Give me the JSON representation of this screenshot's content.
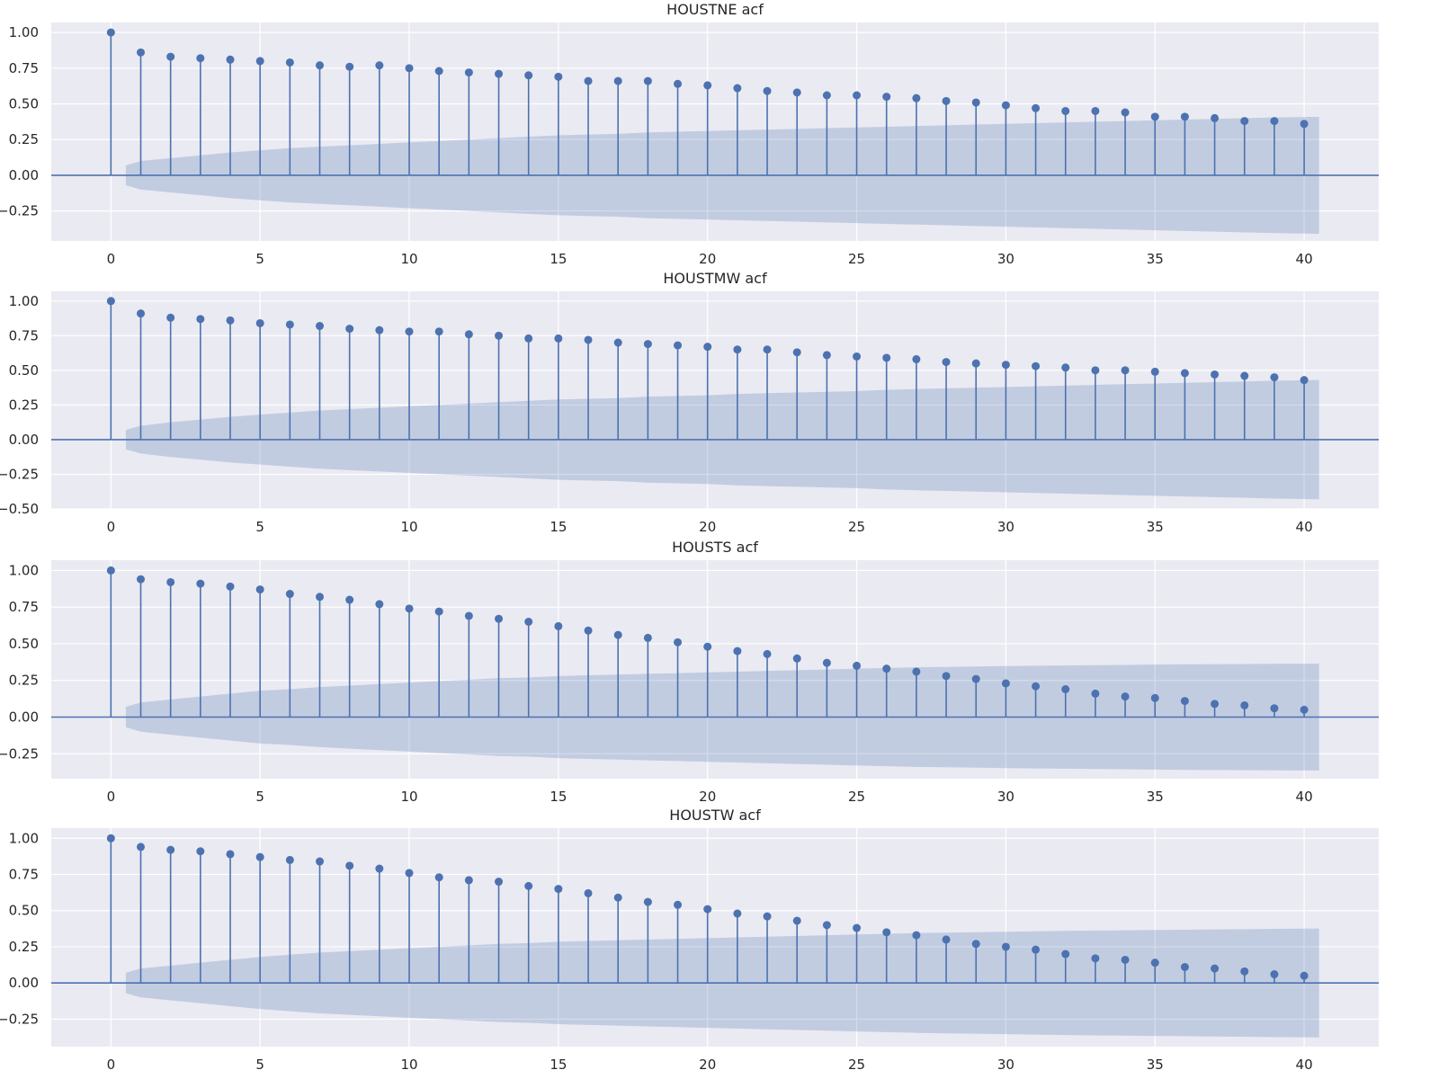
{
  "figure": {
    "background": "#ffffff",
    "plot_background": "#eaeaf2",
    "grid_color": "#ffffff",
    "accent": "#4c72b0",
    "grid": true
  },
  "chart_data": [
    {
      "type": "stem",
      "title": "HOUSTNE acf",
      "xlabel": "",
      "ylabel": "",
      "xlim": [
        -2,
        42.5
      ],
      "ylim": [
        -0.46,
        1.07
      ],
      "x_ticks": [
        0,
        5,
        10,
        15,
        20,
        25,
        30,
        35,
        40
      ],
      "y_ticks": [
        -0.25,
        0.0,
        0.25,
        0.5,
        0.75,
        1.0
      ],
      "y_tick_labels": [
        "−0.25",
        "0.00",
        "0.25",
        "0.50",
        "0.75",
        "1.00"
      ],
      "lags": [
        0,
        1,
        2,
        3,
        4,
        5,
        6,
        7,
        8,
        9,
        10,
        11,
        12,
        13,
        14,
        15,
        16,
        17,
        18,
        19,
        20,
        21,
        22,
        23,
        24,
        25,
        26,
        27,
        28,
        29,
        30,
        31,
        32,
        33,
        34,
        35,
        36,
        37,
        38,
        39,
        40
      ],
      "acf": [
        1.0,
        0.86,
        0.83,
        0.82,
        0.81,
        0.8,
        0.79,
        0.77,
        0.76,
        0.77,
        0.75,
        0.73,
        0.72,
        0.71,
        0.7,
        0.69,
        0.66,
        0.66,
        0.66,
        0.64,
        0.63,
        0.61,
        0.59,
        0.58,
        0.56,
        0.56,
        0.55,
        0.54,
        0.52,
        0.51,
        0.49,
        0.47,
        0.45,
        0.45,
        0.44,
        0.41,
        0.41,
        0.4,
        0.38,
        0.38,
        0.36
      ],
      "conf_band_half_width": [
        0.07,
        0.1,
        0.12,
        0.14,
        0.16,
        0.175,
        0.19,
        0.2,
        0.21,
        0.22,
        0.23,
        0.24,
        0.25,
        0.26,
        0.27,
        0.28,
        0.285,
        0.29,
        0.3,
        0.305,
        0.31,
        0.315,
        0.32,
        0.325,
        0.33,
        0.335,
        0.34,
        0.345,
        0.35,
        0.355,
        0.36,
        0.365,
        0.37,
        0.375,
        0.38,
        0.385,
        0.39,
        0.395,
        0.4,
        0.405,
        0.41
      ]
    },
    {
      "type": "stem",
      "title": "HOUSTMW acf",
      "xlabel": "",
      "ylabel": "",
      "xlim": [
        -2,
        42.5
      ],
      "ylim": [
        -0.5,
        1.07
      ],
      "x_ticks": [
        0,
        5,
        10,
        15,
        20,
        25,
        30,
        35,
        40
      ],
      "y_ticks": [
        -0.5,
        -0.25,
        0.0,
        0.25,
        0.5,
        0.75,
        1.0
      ],
      "y_tick_labels": [
        "−0.50",
        "−0.25",
        "0.00",
        "0.25",
        "0.50",
        "0.75",
        "1.00"
      ],
      "lags": [
        0,
        1,
        2,
        3,
        4,
        5,
        6,
        7,
        8,
        9,
        10,
        11,
        12,
        13,
        14,
        15,
        16,
        17,
        18,
        19,
        20,
        21,
        22,
        23,
        24,
        25,
        26,
        27,
        28,
        29,
        30,
        31,
        32,
        33,
        34,
        35,
        36,
        37,
        38,
        39,
        40
      ],
      "acf": [
        1.0,
        0.91,
        0.88,
        0.87,
        0.86,
        0.84,
        0.83,
        0.82,
        0.8,
        0.79,
        0.78,
        0.78,
        0.76,
        0.75,
        0.73,
        0.73,
        0.72,
        0.7,
        0.69,
        0.68,
        0.67,
        0.65,
        0.65,
        0.63,
        0.61,
        0.6,
        0.59,
        0.58,
        0.56,
        0.55,
        0.54,
        0.53,
        0.52,
        0.5,
        0.5,
        0.49,
        0.48,
        0.47,
        0.46,
        0.45,
        0.43
      ],
      "conf_band_half_width": [
        0.07,
        0.1,
        0.125,
        0.145,
        0.165,
        0.18,
        0.195,
        0.21,
        0.22,
        0.23,
        0.24,
        0.25,
        0.26,
        0.27,
        0.28,
        0.29,
        0.295,
        0.3,
        0.31,
        0.315,
        0.32,
        0.33,
        0.335,
        0.34,
        0.345,
        0.35,
        0.36,
        0.365,
        0.37,
        0.375,
        0.38,
        0.385,
        0.39,
        0.395,
        0.4,
        0.405,
        0.41,
        0.415,
        0.42,
        0.425,
        0.43
      ]
    },
    {
      "type": "stem",
      "title": "HOUSTS acf",
      "xlabel": "",
      "ylabel": "",
      "xlim": [
        -2,
        42.5
      ],
      "ylim": [
        -0.42,
        1.07
      ],
      "x_ticks": [
        0,
        5,
        10,
        15,
        20,
        25,
        30,
        35,
        40
      ],
      "y_ticks": [
        -0.25,
        0.0,
        0.25,
        0.5,
        0.75,
        1.0
      ],
      "y_tick_labels": [
        "−0.25",
        "0.00",
        "0.25",
        "0.50",
        "0.75",
        "1.00"
      ],
      "lags": [
        0,
        1,
        2,
        3,
        4,
        5,
        6,
        7,
        8,
        9,
        10,
        11,
        12,
        13,
        14,
        15,
        16,
        17,
        18,
        19,
        20,
        21,
        22,
        23,
        24,
        25,
        26,
        27,
        28,
        29,
        30,
        31,
        32,
        33,
        34,
        35,
        36,
        37,
        38,
        39,
        40
      ],
      "acf": [
        1.0,
        0.94,
        0.92,
        0.91,
        0.89,
        0.87,
        0.84,
        0.82,
        0.8,
        0.77,
        0.74,
        0.72,
        0.69,
        0.67,
        0.65,
        0.62,
        0.59,
        0.56,
        0.54,
        0.51,
        0.48,
        0.45,
        0.43,
        0.4,
        0.37,
        0.35,
        0.33,
        0.31,
        0.28,
        0.26,
        0.23,
        0.21,
        0.19,
        0.16,
        0.14,
        0.13,
        0.11,
        0.09,
        0.08,
        0.06,
        0.05
      ],
      "conf_band_half_width": [
        0.07,
        0.1,
        0.12,
        0.14,
        0.16,
        0.18,
        0.19,
        0.205,
        0.215,
        0.225,
        0.235,
        0.245,
        0.255,
        0.265,
        0.27,
        0.28,
        0.285,
        0.29,
        0.295,
        0.3,
        0.305,
        0.31,
        0.315,
        0.32,
        0.325,
        0.33,
        0.335,
        0.34,
        0.342,
        0.345,
        0.348,
        0.35,
        0.352,
        0.354,
        0.356,
        0.358,
        0.36,
        0.361,
        0.362,
        0.363,
        0.364
      ]
    },
    {
      "type": "stem",
      "title": "HOUSTW acf",
      "xlabel": "",
      "ylabel": "",
      "xlim": [
        -2,
        42.5
      ],
      "ylim": [
        -0.44,
        1.07
      ],
      "x_ticks": [
        0,
        5,
        10,
        15,
        20,
        25,
        30,
        35,
        40
      ],
      "y_ticks": [
        -0.25,
        0.0,
        0.25,
        0.5,
        0.75,
        1.0
      ],
      "y_tick_labels": [
        "−0.25",
        "0.00",
        "0.25",
        "0.50",
        "0.75",
        "1.00"
      ],
      "lags": [
        0,
        1,
        2,
        3,
        4,
        5,
        6,
        7,
        8,
        9,
        10,
        11,
        12,
        13,
        14,
        15,
        16,
        17,
        18,
        19,
        20,
        21,
        22,
        23,
        24,
        25,
        26,
        27,
        28,
        29,
        30,
        31,
        32,
        33,
        34,
        35,
        36,
        37,
        38,
        39,
        40
      ],
      "acf": [
        1.0,
        0.94,
        0.92,
        0.91,
        0.89,
        0.87,
        0.85,
        0.84,
        0.81,
        0.79,
        0.76,
        0.73,
        0.71,
        0.7,
        0.67,
        0.65,
        0.62,
        0.59,
        0.56,
        0.54,
        0.51,
        0.48,
        0.46,
        0.43,
        0.4,
        0.38,
        0.35,
        0.33,
        0.3,
        0.27,
        0.25,
        0.23,
        0.2,
        0.17,
        0.16,
        0.14,
        0.11,
        0.1,
        0.08,
        0.06,
        0.05
      ],
      "conf_band_half_width": [
        0.07,
        0.1,
        0.12,
        0.14,
        0.16,
        0.18,
        0.195,
        0.21,
        0.22,
        0.23,
        0.24,
        0.25,
        0.26,
        0.27,
        0.275,
        0.285,
        0.29,
        0.295,
        0.3,
        0.305,
        0.31,
        0.315,
        0.32,
        0.325,
        0.33,
        0.335,
        0.34,
        0.345,
        0.348,
        0.351,
        0.354,
        0.357,
        0.36,
        0.362,
        0.364,
        0.366,
        0.368,
        0.37,
        0.372,
        0.374,
        0.376
      ]
    }
  ]
}
